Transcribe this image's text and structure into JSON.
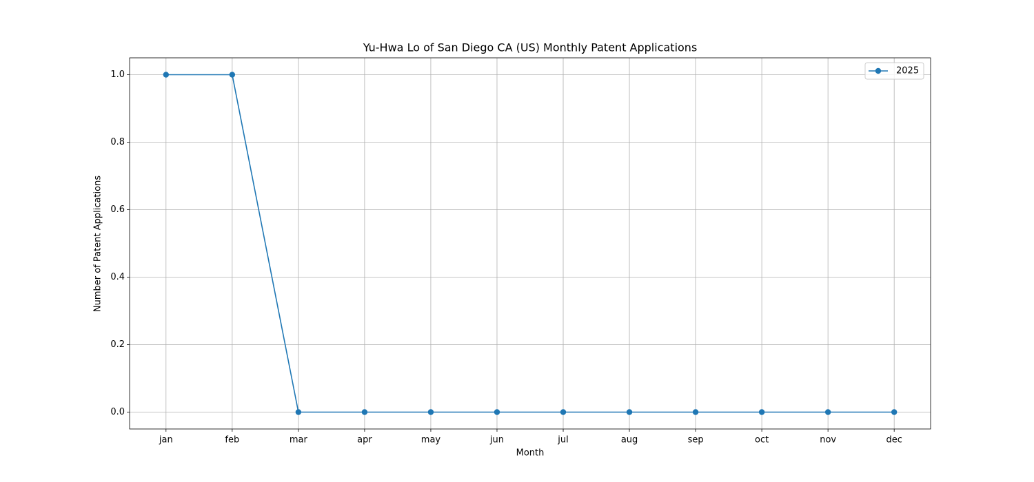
{
  "chart_data": {
    "type": "line",
    "title": "Yu-Hwa Lo of San Diego CA (US) Monthly Patent Applications",
    "x_label": "Month",
    "y_label": "Number of Patent Applications",
    "categories": [
      "jan",
      "feb",
      "mar",
      "apr",
      "may",
      "jun",
      "jul",
      "aug",
      "sep",
      "oct",
      "nov",
      "dec"
    ],
    "series": [
      {
        "name": "2025",
        "color": "#1f77b4",
        "values": [
          1,
          1,
          0,
          0,
          0,
          0,
          0,
          0,
          0,
          0,
          0,
          0
        ]
      }
    ],
    "ylim": [
      -0.05,
      1.05
    ],
    "yticks": [
      {
        "value": 0,
        "label": "0.0"
      },
      0.2,
      0.4,
      0.6,
      0.8,
      {
        "value": 1,
        "label": "1.0"
      }
    ],
    "grid": true,
    "legend": "upper right"
  }
}
